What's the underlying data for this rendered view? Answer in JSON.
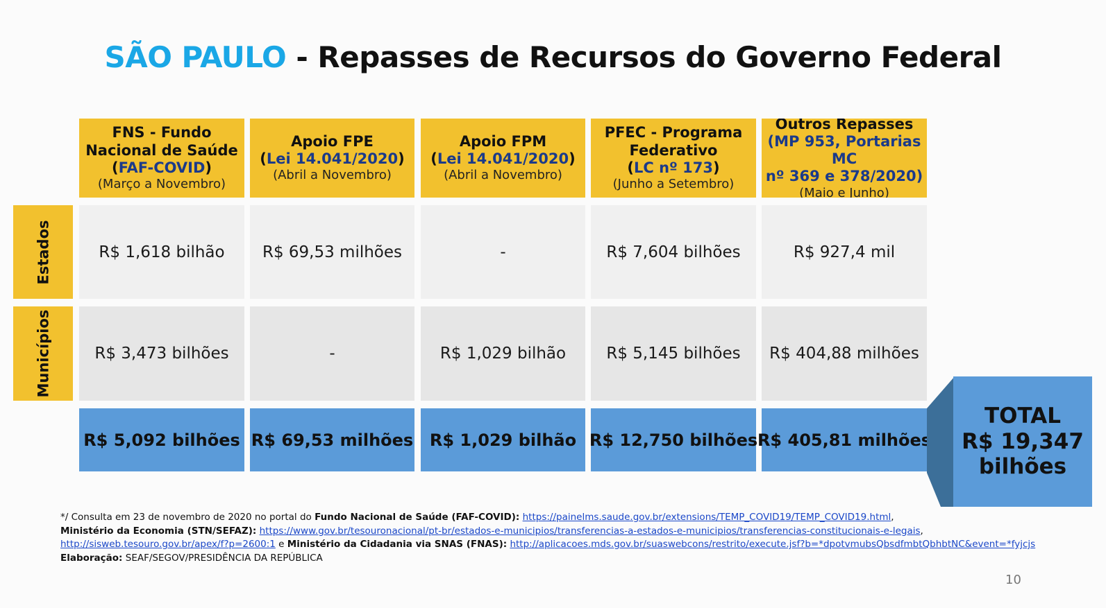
{
  "title": {
    "city": "SÃO PAULO",
    "rest": " - Repasses de Recursos do Governo Federal"
  },
  "columns": [
    {
      "line1": "FNS - Fundo",
      "line2": "Nacional de Saúde",
      "law": "FAF-COVID",
      "period": "(Março a Novembro)"
    },
    {
      "line1": "Apoio FPE",
      "law": "Lei 14.041/2020",
      "period": "(Abril a Novembro)"
    },
    {
      "line1": "Apoio FPM",
      "law": "Lei 14.041/2020",
      "period": "(Abril a Novembro)"
    },
    {
      "line1": "PFEC - Programa",
      "line2": "Federativo",
      "law": "LC nº 173",
      "period": "(Junho a Setembro)"
    },
    {
      "line1": "Outros Repasses",
      "law_a": "(MP 953, Portarias MC",
      "law_b": "nº 369 e 378/2020)",
      "period": "(Maio e Junho)"
    }
  ],
  "rows": [
    {
      "label": "Estados",
      "values": [
        "R$ 1,618 bilhão",
        "R$ 69,53 milhões",
        "-",
        "R$ 7,604 bilhões",
        "R$ 927,4 mil"
      ]
    },
    {
      "label": "Municípios",
      "values": [
        "R$ 3,473 bilhões",
        "-",
        "R$ 1,029 bilhão",
        "R$ 5,145 bilhões",
        "R$ 404,88 milhões"
      ]
    }
  ],
  "totals": [
    "R$ 5,092 bilhões",
    "R$ 69,53 milhões",
    "R$ 1,029 bilhão",
    "R$ 12,750 bilhões",
    "R$ 405,81 milhões"
  ],
  "grand_total": {
    "label": "TOTAL",
    "value_a": "R$ 19,347",
    "value_b": "bilhões"
  },
  "footer": {
    "l1_prefix": "*/ Consulta em 23 de novembro de 2020 no portal do ",
    "l1_bold": "Fundo Nacional de Saúde (FAF-COVID):",
    "l1_link": "https://painelms.saude.gov.br/extensions/TEMP_COVID19/TEMP_COVID19.html",
    "l1_suffix": ",",
    "l2_bold": "Ministério da Economia (STN/SEFAZ):",
    "l2_link": "https://www.gov.br/tesouronacional/pt-br/estados-e-municipios/transferencias-a-estados-e-municipios/transferencias-constitucionais-e-legais",
    "l2_suffix": ",",
    "l3_link1": "http://sisweb.tesouro.gov.br/apex/f?p=2600:1",
    "l3_mid": " e ",
    "l3_bold": "Ministério da Cidadania via SNAS (FNAS):",
    "l3_link2": "http://aplicacoes.mds.gov.br/suaswebcons/restrito/execute.jsf?b=*dpotvmubsQbsdfmbtQbhbtNC&event=*fyjcjs",
    "l4_bold": "Elaboração:",
    "l4_text": " SEAF/SEGOV/PRESIDÊNCIA DA REPÚBLICA"
  },
  "page_number": "10",
  "colors": {
    "header_yellow": "#f2c12e",
    "total_blue": "#5b9bd9",
    "title_blue": "#1aa7e6",
    "law_blue": "#1b3a8a"
  }
}
